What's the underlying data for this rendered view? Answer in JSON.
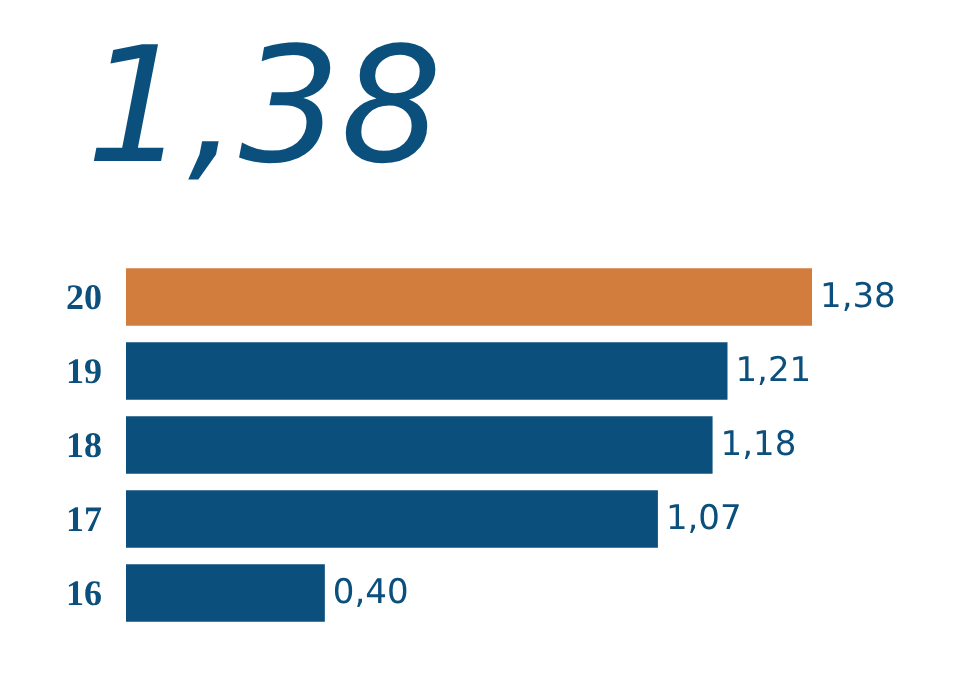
{
  "chart_data": {
    "type": "bar",
    "orientation": "horizontal",
    "title": "1,38",
    "categories": [
      "20",
      "19",
      "18",
      "17",
      "16"
    ],
    "values": [
      1.38,
      1.21,
      1.18,
      1.07,
      0.4
    ],
    "colors": [
      "#d27d3e",
      "#0b4f7c",
      "#0b4f7c",
      "#0b4f7c",
      "#0b4f7c"
    ],
    "value_labels": [
      "1,38",
      "1,21",
      "1,18",
      "1,07",
      "0,40"
    ]
  }
}
